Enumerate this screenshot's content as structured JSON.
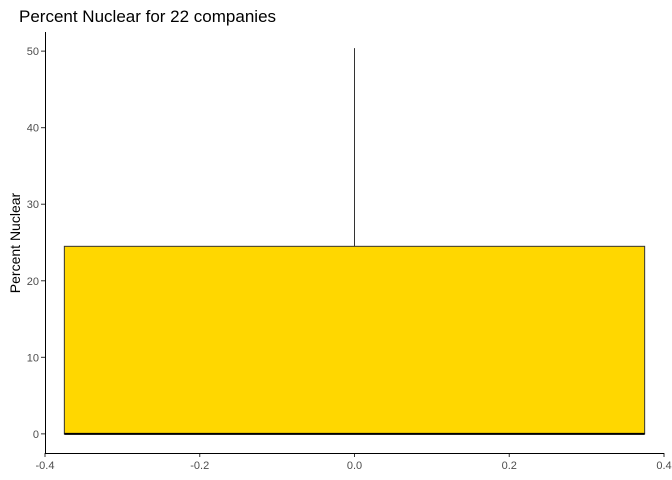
{
  "chart_data": {
    "type": "boxplot",
    "title": "Percent Nuclear for 22 companies",
    "xlabel": "",
    "ylabel": "Percent Nuclear",
    "xlim": [
      -0.4,
      0.4
    ],
    "ylim": [
      -2.5,
      52.5
    ],
    "x_ticks": [
      -0.4,
      -0.2,
      0.0,
      0.2,
      0.4
    ],
    "x_tick_labels": [
      "-0.4",
      "-0.2",
      "0.0",
      "0.2",
      "0.4"
    ],
    "y_ticks": [
      0,
      10,
      20,
      30,
      40,
      50
    ],
    "y_tick_labels": [
      "0",
      "10",
      "20",
      "30",
      "40",
      "50"
    ],
    "grid": false,
    "box": {
      "x_center": 0.0,
      "x_left": -0.375,
      "x_right": 0.375,
      "min": 0,
      "q1": 0,
      "median": 0,
      "q3": 24.5,
      "max": 50.4,
      "fill": "#FFD700",
      "stroke": "#333333"
    }
  }
}
